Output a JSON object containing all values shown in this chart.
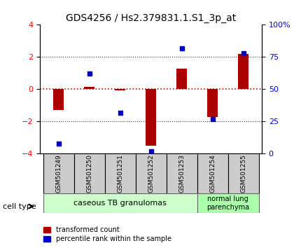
{
  "title": "GDS4256 / Hs2.379831.1.S1_3p_at",
  "samples": [
    "GSM501249",
    "GSM501250",
    "GSM501251",
    "GSM501252",
    "GSM501253",
    "GSM501254",
    "GSM501255"
  ],
  "transformed_counts": [
    -1.3,
    0.15,
    -0.05,
    -3.5,
    1.3,
    -1.7,
    2.2
  ],
  "percentile_ranks": [
    8,
    62,
    32,
    2,
    82,
    27,
    78
  ],
  "ylim_left": [
    -4,
    4
  ],
  "ylim_right": [
    0,
    100
  ],
  "yticks_left": [
    -4,
    -2,
    0,
    2,
    4
  ],
  "yticks_right": [
    0,
    25,
    50,
    75,
    100
  ],
  "ytick_labels_right": [
    "0",
    "25",
    "50",
    "75",
    "100%"
  ],
  "bar_color": "#aa0000",
  "dot_color": "#0000cc",
  "zero_line_color": "#cc0000",
  "dotted_line_color": "#333333",
  "group1_label": "caseous TB granulomas",
  "group2_label": "normal lung\nparenchyma",
  "group1_color": "#ccffcc",
  "group2_color": "#aaffaa",
  "sample_box_color": "#cccccc",
  "legend_red_label": "transformed count",
  "legend_blue_label": "percentile rank within the sample",
  "cell_type_label": "cell type"
}
